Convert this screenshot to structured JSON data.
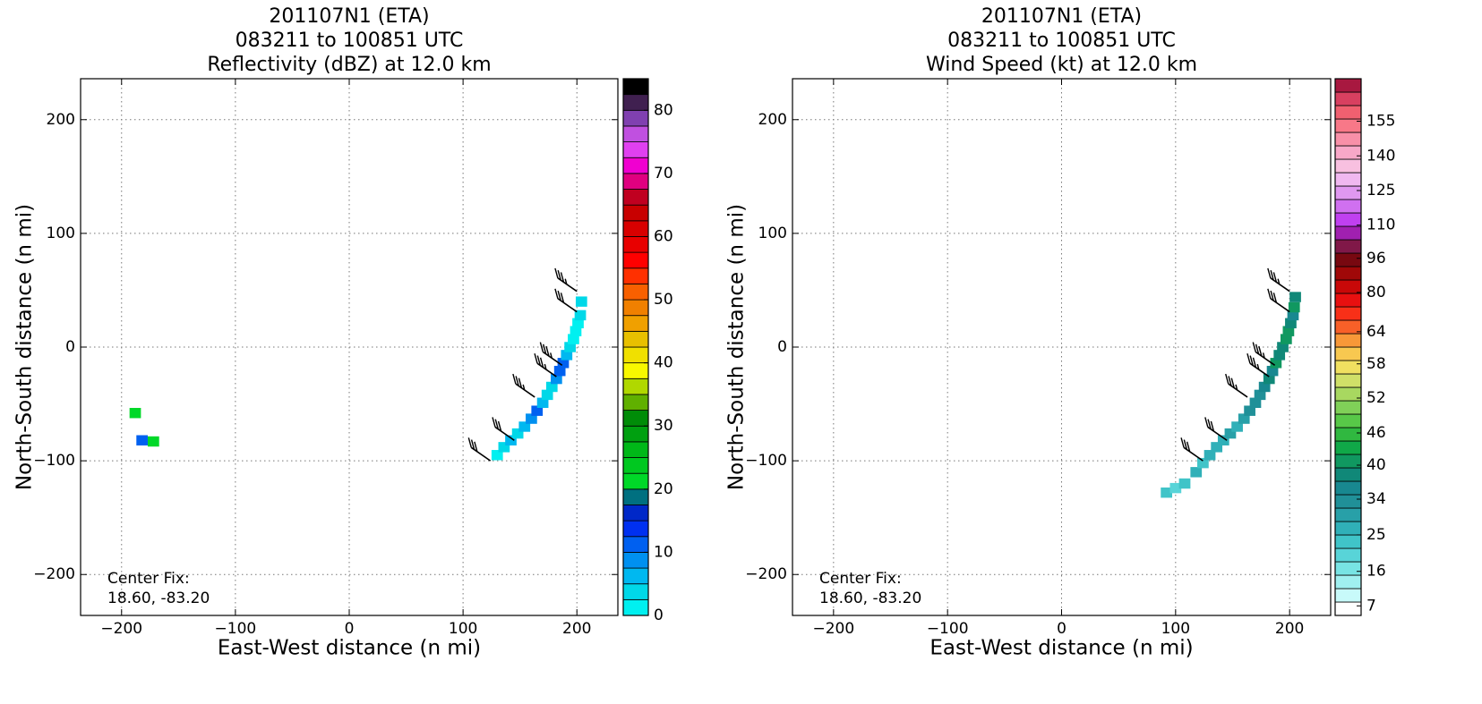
{
  "chart_data": [
    {
      "type": "heatmap",
      "title": [
        "201107N1 (ETA)",
        "083211 to 100851 UTC",
        "Reflectivity (dBZ) at 12.0 km"
      ],
      "x_label": "East-West distance (n mi)",
      "y_label": "North-South distance (n mi)",
      "annotations": [
        "Center Fix:",
        "18.60, -83.20"
      ],
      "xlim": [
        -236,
        236
      ],
      "ylim": [
        -236,
        236
      ],
      "xticks": [
        {
          "value": -200,
          "label": "−200"
        },
        {
          "value": -100,
          "label": "−100"
        },
        0,
        100,
        200
      ],
      "yticks": [
        {
          "value": -200,
          "label": "−200"
        },
        {
          "value": -100,
          "label": "−100"
        },
        0,
        100,
        200
      ],
      "grid": true,
      "cells": {
        "x": [
          130,
          136,
          142,
          148,
          154,
          160,
          165,
          170,
          174,
          178,
          182,
          185,
          188,
          191,
          194,
          197,
          199,
          201,
          203,
          204,
          -188,
          -182,
          -172
        ],
        "y": [
          -95,
          -88,
          -82,
          -76,
          -70,
          -63,
          -56,
          -49,
          -42,
          -35,
          -28,
          -21,
          -14,
          -7,
          0,
          7,
          14,
          21,
          28,
          40,
          -58,
          -82,
          -83
        ],
        "values": [
          2,
          3,
          5,
          4,
          6,
          8,
          10,
          7,
          4,
          3,
          9,
          11,
          12,
          6,
          3,
          2,
          1,
          2,
          4,
          3,
          20,
          12,
          22
        ]
      },
      "barbs": {
        "x": [
          124,
          145,
          163,
          182,
          187,
          200,
          200
        ],
        "y": [
          -100,
          -82,
          -44,
          -26,
          -16,
          31,
          49
        ],
        "speed": [
          30,
          30,
          35,
          35,
          35,
          30,
          35
        ]
      },
      "colorbar": {
        "levels": [
          0,
          2.5,
          5,
          7.5,
          10,
          12.5,
          15,
          17.5,
          20,
          22.5,
          25,
          27.5,
          30,
          32.5,
          35,
          37.5,
          40,
          42.5,
          45,
          47.5,
          50,
          52.5,
          55,
          57.5,
          60,
          62.5,
          65,
          67.5,
          70,
          72.5,
          75,
          77.5,
          80
        ],
        "colors": [
          "#00f0f0",
          "#00d8e8",
          "#00b8f0",
          "#0090f0",
          "#0060f0",
          "#0030f0",
          "#0028c8",
          "#007080",
          "#00d828",
          "#00c820",
          "#00b818",
          "#00a010",
          "#008c08",
          "#60b000",
          "#b0d800",
          "#f8f800",
          "#f0e000",
          "#e8c000",
          "#f0a000",
          "#f08000",
          "#f86000",
          "#ff3000",
          "#ff0000",
          "#e80000",
          "#d80000",
          "#c80000",
          "#c00020",
          "#e00080",
          "#f000d0",
          "#e040f0",
          "#c050e0",
          "#8040b0",
          "#402050",
          "#000000"
        ],
        "ticks": [
          0,
          10,
          20,
          30,
          40,
          50,
          60,
          70,
          80
        ]
      }
    },
    {
      "type": "heatmap",
      "title": [
        "201107N1 (ETA)",
        "083211 to 100851 UTC",
        "Wind Speed (kt) at 12.0 km"
      ],
      "x_label": "East-West distance (n mi)",
      "y_label": "North-South distance (n mi)",
      "annotations": [
        "Center Fix:",
        "18.60, -83.20"
      ],
      "xlim": [
        -236,
        236
      ],
      "ylim": [
        -236,
        236
      ],
      "xticks": [
        {
          "value": -200,
          "label": "−200"
        },
        {
          "value": -100,
          "label": "−100"
        },
        0,
        100,
        200
      ],
      "yticks": [
        {
          "value": -200,
          "label": "−200"
        },
        {
          "value": -100,
          "label": "−100"
        },
        0,
        100,
        200
      ],
      "grid": true,
      "cells": {
        "x": [
          92,
          100,
          108,
          118,
          124,
          130,
          136,
          142,
          148,
          154,
          160,
          165,
          170,
          174,
          178,
          182,
          185,
          188,
          191,
          194,
          197,
          199,
          201,
          203,
          204,
          205
        ],
        "y": [
          -128,
          -124,
          -120,
          -110,
          -102,
          -95,
          -88,
          -82,
          -76,
          -70,
          -63,
          -56,
          -49,
          -42,
          -35,
          -28,
          -21,
          -14,
          -7,
          0,
          7,
          14,
          21,
          28,
          35,
          44
        ],
        "values": [
          22,
          20,
          24,
          25,
          22,
          25,
          27,
          28,
          30,
          28,
          30,
          32,
          34,
          33,
          36,
          38,
          37,
          40,
          38,
          39,
          41,
          40,
          38,
          36,
          40,
          38
        ]
      },
      "barbs": {
        "x": [
          124,
          145,
          163,
          182,
          187,
          200,
          200
        ],
        "y": [
          -100,
          -82,
          -44,
          -26,
          -16,
          31,
          49
        ],
        "speed": [
          30,
          30,
          35,
          35,
          35,
          30,
          35
        ]
      },
      "colorbar": {
        "levels": [
          4.5,
          8,
          11.5,
          15,
          18.5,
          22,
          25,
          28.5,
          32,
          35,
          37.5,
          39.5,
          42,
          44.5,
          47,
          49,
          51.5,
          54,
          56.5,
          58.5,
          61,
          63.5,
          67,
          73,
          79.5,
          86,
          92,
          98.5,
          104,
          109.5,
          115,
          121,
          127,
          133,
          138.5,
          144.5,
          150,
          156,
          161.5,
          167,
          173
        ],
        "colors": [
          "#ffffff",
          "#c8fafa",
          "#a0f0f0",
          "#78e4e4",
          "#58d4d8",
          "#40c4c8",
          "#30b0b8",
          "#28a0a8",
          "#209098",
          "#188890",
          "#108878",
          "#109860",
          "#10a848",
          "#30b840",
          "#58c848",
          "#80d058",
          "#a8d860",
          "#d0e068",
          "#f0e060",
          "#f8c850",
          "#f89838",
          "#f86028",
          "#f83018",
          "#e81010",
          "#c80808",
          "#a00808",
          "#780810",
          "#801848",
          "#a020b0",
          "#c040f0",
          "#d070f0",
          "#e098f0",
          "#f0b8f0",
          "#f8c0e0",
          "#f8a8c8",
          "#f890a8",
          "#f87888",
          "#f06070",
          "#d84060",
          "#a81840"
        ],
        "ticks": [
          7,
          16,
          25,
          34,
          40,
          46,
          52,
          58,
          64,
          80,
          96,
          110,
          125,
          140,
          155
        ]
      }
    }
  ]
}
